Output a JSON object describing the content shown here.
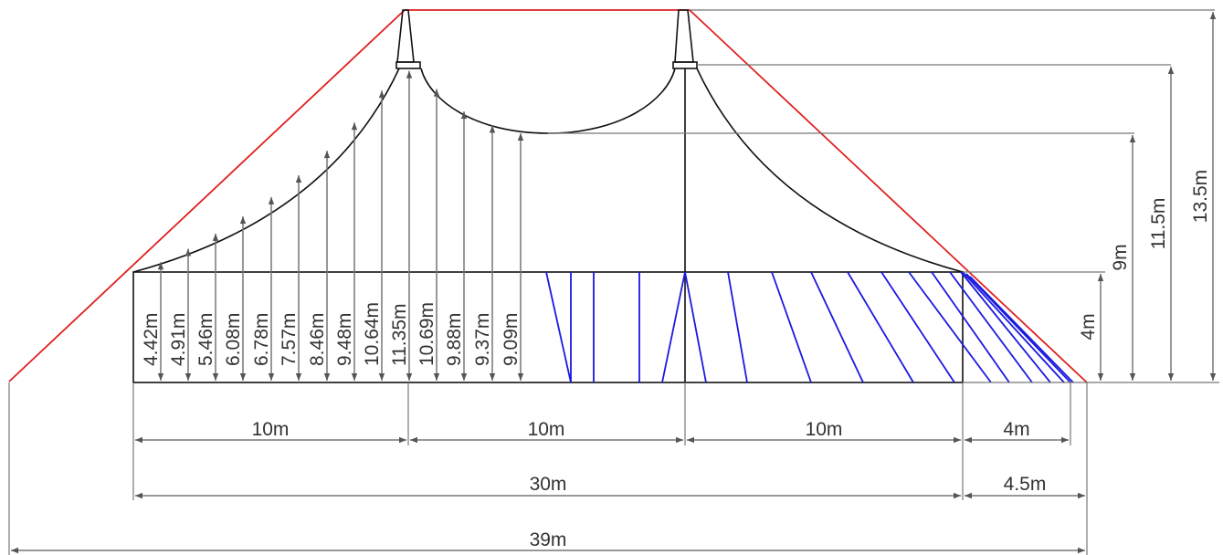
{
  "colors": {
    "roof_profile": "#e02020",
    "wall_panels": "#1a1adf",
    "dimension_lines": "#777777",
    "outline": "#111111"
  },
  "horizontal_dimensions": {
    "bay_1": "10m",
    "bay_2": "10m",
    "bay_3": "10m",
    "overhang_inner": "4m",
    "main_span": "30m",
    "overhang_outer": "4.5m",
    "total_width": "39m"
  },
  "vertical_dimensions": {
    "side_height": "4m",
    "valley_height": "9m",
    "mast_ring_height": "11.5m",
    "ridge_height": "13.5m"
  },
  "roof_heights": [
    "4.42m",
    "4.91m",
    "5.46m",
    "6.08m",
    "6.78m",
    "7.57m",
    "8.46m",
    "9.48m",
    "10.64m",
    "11.35m",
    "10.69m",
    "9.88m",
    "9.37m",
    "9.09m"
  ]
}
